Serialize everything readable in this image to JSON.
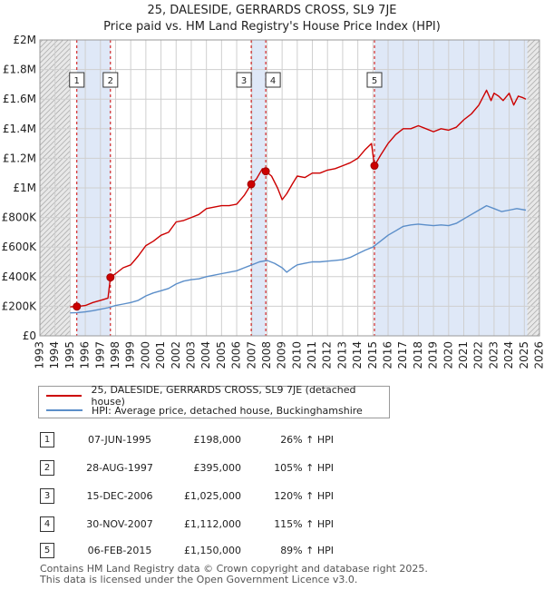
{
  "title": "25, DALESIDE, GERRARDS CROSS, SL9 7JE",
  "subtitle": "Price paid vs. HM Land Registry's House Price Index (HPI)",
  "chart_data": {
    "type": "line",
    "xlim": [
      1993,
      2026
    ],
    "ylim": [
      0,
      2000000
    ],
    "x_ticks": [
      1993,
      1994,
      1995,
      1996,
      1997,
      1998,
      1999,
      2000,
      2001,
      2002,
      2003,
      2004,
      2005,
      2006,
      2007,
      2008,
      2009,
      2010,
      2011,
      2012,
      2013,
      2014,
      2015,
      2016,
      2017,
      2018,
      2019,
      2020,
      2021,
      2022,
      2023,
      2024,
      2025,
      2026
    ],
    "y_ticks": [
      {
        "value": 0,
        "label": "£0"
      },
      {
        "value": 200000,
        "label": "£200K"
      },
      {
        "value": 400000,
        "label": "£400K"
      },
      {
        "value": 600000,
        "label": "£600K"
      },
      {
        "value": 800000,
        "label": "£800K"
      },
      {
        "value": 1000000,
        "label": "£1M"
      },
      {
        "value": 1200000,
        "label": "£1.2M"
      },
      {
        "value": 1400000,
        "label": "£1.4M"
      },
      {
        "value": 1600000,
        "label": "£1.6M"
      },
      {
        "value": 1800000,
        "label": "£1.8M"
      },
      {
        "value": 2000000,
        "label": "£2M"
      }
    ],
    "grid": true,
    "hatched_ranges": [
      [
        1993,
        1995.0
      ],
      [
        2025.2,
        2026
      ]
    ],
    "shaded_ranges": [
      [
        1995.44,
        1997.66
      ],
      [
        2006.96,
        2007.92
      ],
      [
        2015.1,
        2026
      ]
    ],
    "sales": [
      {
        "label": "1",
        "x": 1995.44,
        "y": 198000
      },
      {
        "label": "2",
        "x": 1997.66,
        "y": 395000
      },
      {
        "label": "3",
        "x": 2006.96,
        "y": 1025000
      },
      {
        "label": "4",
        "x": 2007.92,
        "y": 1112000
      },
      {
        "label": "5",
        "x": 2015.1,
        "y": 1150000
      }
    ],
    "series": [
      {
        "name": "25, DALESIDE, GERRARDS CROSS, SL9 7JE (detached house)",
        "color": "#cc0000",
        "x": [
          1995.0,
          1995.44,
          1996.0,
          1996.5,
          1997.0,
          1997.5,
          1997.66,
          1998.0,
          1998.5,
          1999.0,
          1999.5,
          2000.0,
          2000.5,
          2001.0,
          2001.5,
          2002.0,
          2002.5,
          2003.0,
          2003.5,
          2004.0,
          2004.5,
          2005.0,
          2005.5,
          2006.0,
          2006.5,
          2006.96,
          2007.3,
          2007.7,
          2007.92,
          2008.3,
          2008.7,
          2009.0,
          2009.3,
          2009.7,
          2010.0,
          2010.5,
          2011.0,
          2011.5,
          2012.0,
          2012.5,
          2013.0,
          2013.5,
          2014.0,
          2014.5,
          2014.9,
          2015.1,
          2015.5,
          2016.0,
          2016.5,
          2017.0,
          2017.5,
          2018.0,
          2018.5,
          2019.0,
          2019.5,
          2020.0,
          2020.5,
          2021.0,
          2021.5,
          2022.0,
          2022.5,
          2022.8,
          2023.0,
          2023.3,
          2023.6,
          2024.0,
          2024.3,
          2024.6,
          2024.9,
          2025.1
        ],
        "y": [
          196000,
          198000,
          205000,
          225000,
          240000,
          255000,
          395000,
          420000,
          460000,
          480000,
          540000,
          610000,
          640000,
          680000,
          700000,
          770000,
          780000,
          800000,
          820000,
          860000,
          870000,
          880000,
          880000,
          890000,
          950000,
          1025000,
          1060000,
          1130000,
          1112000,
          1080000,
          1000000,
          920000,
          960000,
          1030000,
          1080000,
          1070000,
          1100000,
          1100000,
          1120000,
          1130000,
          1150000,
          1170000,
          1200000,
          1260000,
          1300000,
          1150000,
          1220000,
          1300000,
          1360000,
          1400000,
          1400000,
          1420000,
          1400000,
          1380000,
          1400000,
          1390000,
          1410000,
          1460000,
          1500000,
          1560000,
          1660000,
          1590000,
          1640000,
          1620000,
          1590000,
          1640000,
          1560000,
          1620000,
          1610000,
          1600000
        ]
      },
      {
        "name": "HPI: Average price, detached house, Buckinghamshire",
        "color": "#5b8ec9",
        "x": [
          1995.0,
          1995.5,
          1996.0,
          1996.5,
          1997.0,
          1997.5,
          1998.0,
          1998.5,
          1999.0,
          1999.5,
          2000.0,
          2000.5,
          2001.0,
          2001.5,
          2002.0,
          2002.5,
          2003.0,
          2003.5,
          2004.0,
          2004.5,
          2005.0,
          2005.5,
          2006.0,
          2006.5,
          2007.0,
          2007.5,
          2008.0,
          2008.5,
          2009.0,
          2009.3,
          2009.7,
          2010.0,
          2010.5,
          2011.0,
          2011.5,
          2012.0,
          2012.5,
          2013.0,
          2013.5,
          2014.0,
          2014.5,
          2015.0,
          2015.5,
          2016.0,
          2016.5,
          2017.0,
          2017.5,
          2018.0,
          2018.5,
          2019.0,
          2019.5,
          2020.0,
          2020.5,
          2021.0,
          2021.5,
          2022.0,
          2022.5,
          2023.0,
          2023.5,
          2024.0,
          2024.5,
          2025.1
        ],
        "y": [
          155000,
          157000,
          162000,
          170000,
          180000,
          190000,
          205000,
          215000,
          225000,
          240000,
          270000,
          290000,
          305000,
          320000,
          350000,
          370000,
          380000,
          385000,
          400000,
          410000,
          420000,
          430000,
          440000,
          460000,
          480000,
          500000,
          510000,
          490000,
          460000,
          430000,
          460000,
          480000,
          490000,
          500000,
          500000,
          505000,
          510000,
          515000,
          530000,
          555000,
          580000,
          600000,
          640000,
          680000,
          710000,
          740000,
          750000,
          755000,
          750000,
          745000,
          750000,
          745000,
          760000,
          790000,
          820000,
          850000,
          880000,
          860000,
          840000,
          850000,
          860000,
          850000
        ]
      }
    ]
  },
  "legend": [
    {
      "label": "25, DALESIDE, GERRARDS CROSS, SL9 7JE (detached house)",
      "color": "#cc0000"
    },
    {
      "label": "HPI: Average price, detached house, Buckinghamshire",
      "color": "#5b8ec9"
    }
  ],
  "table": [
    {
      "num": "1",
      "date": "07-JUN-1995",
      "price": "£198,000",
      "hpi": "26% ↑ HPI"
    },
    {
      "num": "2",
      "date": "28-AUG-1997",
      "price": "£395,000",
      "hpi": "105% ↑ HPI"
    },
    {
      "num": "3",
      "date": "15-DEC-2006",
      "price": "£1,025,000",
      "hpi": "120% ↑ HPI"
    },
    {
      "num": "4",
      "date": "30-NOV-2007",
      "price": "£1,112,000",
      "hpi": "115% ↑ HPI"
    },
    {
      "num": "5",
      "date": "06-FEB-2015",
      "price": "£1,150,000",
      "hpi": "89% ↑ HPI"
    }
  ],
  "footer": {
    "line1": "Contains HM Land Registry data © Crown copyright and database right 2025.",
    "line2": "This data is licensed under the Open Government Licence v3.0."
  }
}
